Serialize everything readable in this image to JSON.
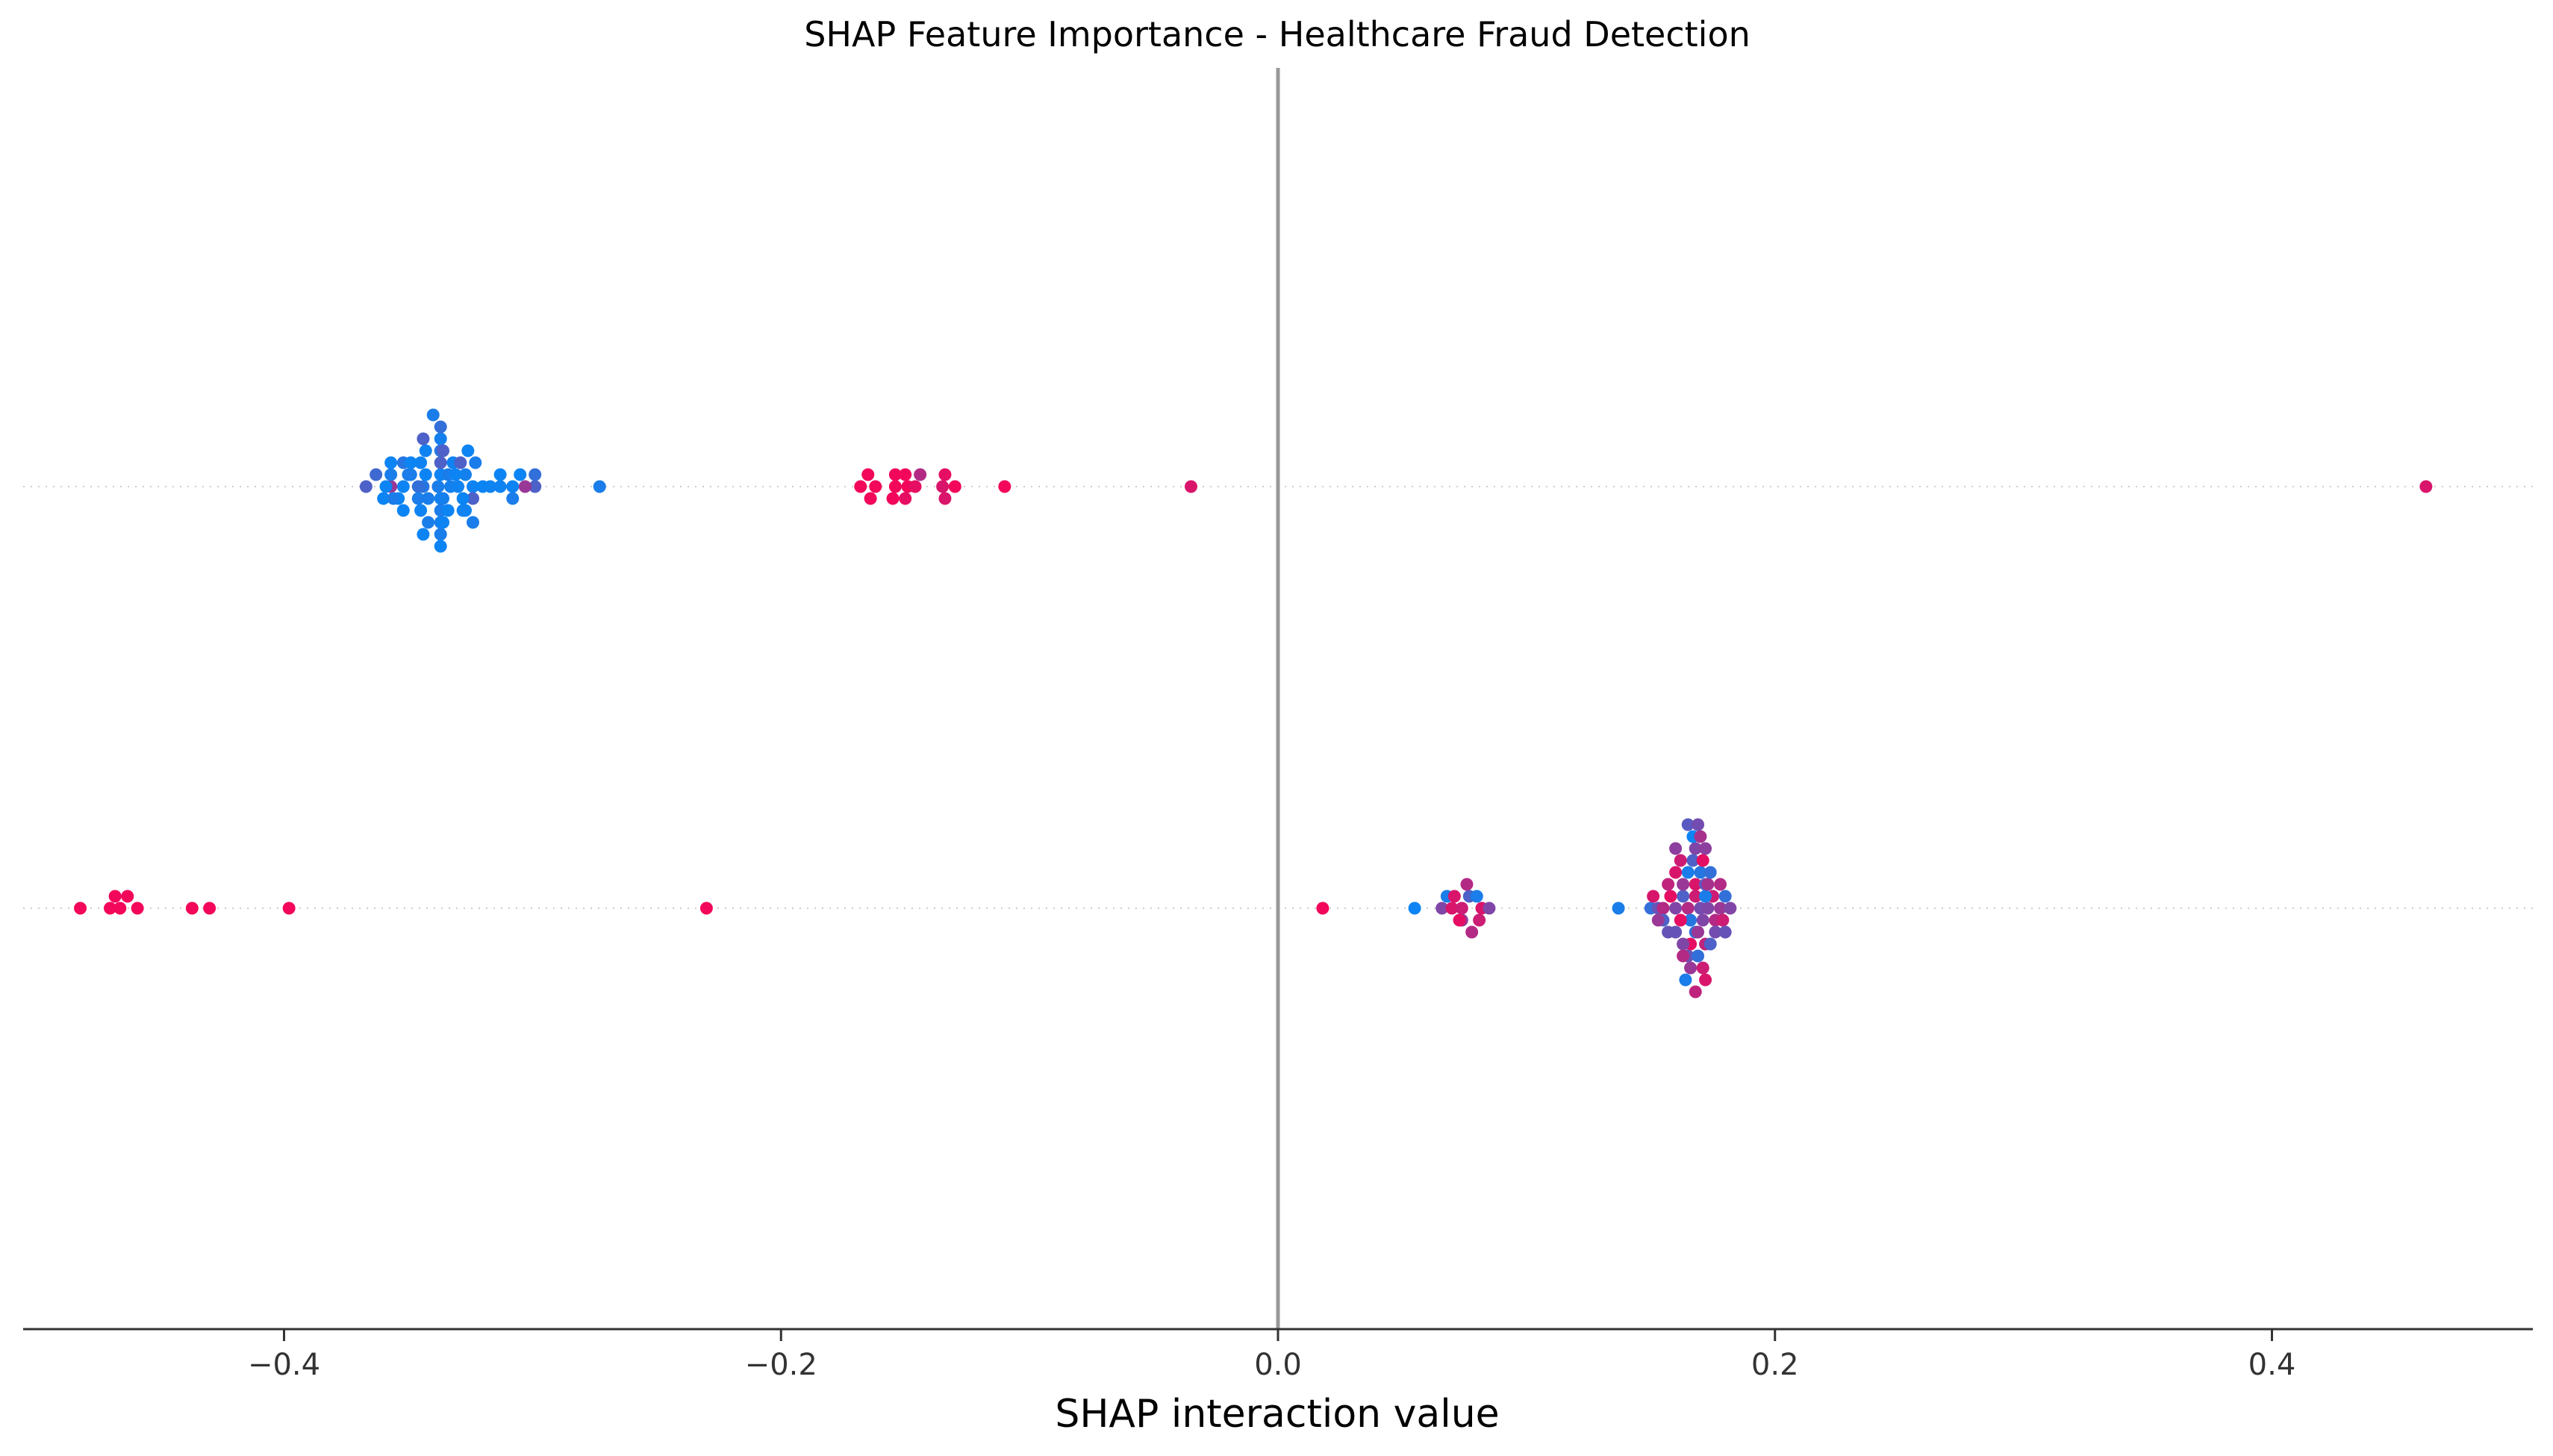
{
  "chart_data": {
    "type": "scatter",
    "title": "SHAP Feature Importance - Healthcare Fraud Detection",
    "xlabel": "SHAP interaction value",
    "ylabel": "",
    "xlim": [
      -0.505,
      0.505
    ],
    "xticks": [
      -0.4,
      -0.2,
      0.0,
      0.2,
      0.4
    ],
    "xtick_labels": [
      "−0.4",
      "−0.2",
      "0.0",
      "0.2",
      "0.4"
    ],
    "zero_line": 0.0,
    "grid": false,
    "rows": [
      {
        "row_index": 0,
        "feature_label": "",
        "points": [
          {
            "x": -0.344,
            "v": 0.15
          },
          {
            "x": -0.338,
            "v": 0.1
          },
          {
            "x": -0.343,
            "v": 0.05
          },
          {
            "x": -0.333,
            "v": 0.08
          },
          {
            "x": -0.337,
            "v": 0.05
          },
          {
            "x": -0.324,
            "v": 0.06
          },
          {
            "x": -0.342,
            "v": 0.1
          },
          {
            "x": -0.334,
            "v": 0.1
          },
          {
            "x": -0.336,
            "v": 0.1
          },
          {
            "x": -0.327,
            "v": 0.08
          },
          {
            "x": -0.352,
            "v": 0.05
          },
          {
            "x": -0.337,
            "v": 0.08
          },
          {
            "x": -0.324,
            "v": 0.3
          },
          {
            "x": -0.35,
            "v": 0.1
          },
          {
            "x": -0.337,
            "v": 0.3
          },
          {
            "x": -0.345,
            "v": 0.06
          },
          {
            "x": -0.354,
            "v": 0.05
          },
          {
            "x": -0.337,
            "v": 0.1
          },
          {
            "x": -0.357,
            "v": 0.6
          },
          {
            "x": -0.346,
            "v": 0.2
          },
          {
            "x": -0.33,
            "v": 0.06
          },
          {
            "x": -0.352,
            "v": 0.15
          },
          {
            "x": -0.337,
            "v": 0.15
          },
          {
            "x": -0.323,
            "v": 0.1
          },
          {
            "x": -0.359,
            "v": 0.05
          },
          {
            "x": -0.331,
            "v": 0.05
          },
          {
            "x": -0.308,
            "v": 0.05
          },
          {
            "x": -0.337,
            "v": 0.1
          },
          {
            "x": -0.328,
            "v": 0.05
          },
          {
            "x": -0.313,
            "v": 0.06
          },
          {
            "x": -0.305,
            "v": 0.05
          },
          {
            "x": -0.349,
            "v": 0.1
          },
          {
            "x": -0.337,
            "v": 0.08
          },
          {
            "x": -0.332,
            "v": 0.06
          },
          {
            "x": -0.363,
            "v": 0.25
          },
          {
            "x": -0.36,
            "v": 0.05
          },
          {
            "x": -0.346,
            "v": 0.1
          },
          {
            "x": -0.334,
            "v": 0.05
          },
          {
            "x": -0.317,
            "v": 0.06
          },
          {
            "x": -0.308,
            "v": 0.1
          },
          {
            "x": -0.367,
            "v": 0.3
          },
          {
            "x": -0.357,
            "v": 0.1
          },
          {
            "x": -0.345,
            "v": 0.06
          },
          {
            "x": -0.327,
            "v": 0.05
          },
          {
            "x": -0.299,
            "v": 0.3
          },
          {
            "x": -0.303,
            "v": 0.6
          },
          {
            "x": -0.352,
            "v": 0.05
          },
          {
            "x": -0.337,
            "v": 0.1
          },
          {
            "x": -0.32,
            "v": 0.05
          },
          {
            "x": -0.299,
            "v": 0.2
          },
          {
            "x": -0.356,
            "v": 0.1
          },
          {
            "x": -0.343,
            "v": 0.06
          },
          {
            "x": -0.326,
            "v": 0.05
          },
          {
            "x": -0.337,
            "v": 0.2
          },
          {
            "x": -0.349,
            "v": 0.05
          },
          {
            "x": -0.329,
            "v": 0.3
          },
          {
            "x": -0.357,
            "v": 0.05
          },
          {
            "x": -0.342,
            "v": 0.1
          },
          {
            "x": -0.313,
            "v": 0.05
          },
          {
            "x": -0.336,
            "v": 0.3
          },
          {
            "x": -0.328,
            "v": 0.06
          },
          {
            "x": -0.344,
            "v": 0.3
          },
          {
            "x": -0.337,
            "v": 0.05
          },
          {
            "x": -0.324,
            "v": 0.1
          },
          {
            "x": -0.344,
            "v": 0.05
          },
          {
            "x": -0.34,
            "v": 0.1
          },
          {
            "x": -0.336,
            "v": 0.05
          },
          {
            "x": -0.162,
            "v": 0.95
          },
          {
            "x": -0.149,
            "v": 0.95
          },
          {
            "x": -0.15,
            "v": 0.95
          },
          {
            "x": -0.165,
            "v": 0.95
          },
          {
            "x": -0.146,
            "v": 0.9
          },
          {
            "x": -0.154,
            "v": 0.95
          },
          {
            "x": -0.144,
            "v": 0.7
          },
          {
            "x": -0.135,
            "v": 0.85
          },
          {
            "x": -0.13,
            "v": 0.95
          },
          {
            "x": -0.164,
            "v": 0.95
          },
          {
            "x": -0.15,
            "v": 0.9
          },
          {
            "x": -0.134,
            "v": 0.9
          },
          {
            "x": -0.168,
            "v": 0.95
          },
          {
            "x": -0.154,
            "v": 0.95
          },
          {
            "x": -0.134,
            "v": 0.85
          },
          {
            "x": -0.155,
            "v": 0.95
          },
          {
            "x": -0.11,
            "v": 0.95
          },
          {
            "x": -0.035,
            "v": 0.85
          },
          {
            "x": -0.273,
            "v": 0.1
          },
          {
            "x": 0.462,
            "v": 0.85
          }
        ]
      },
      {
        "row_index": 1,
        "feature_label": "",
        "points": [
          {
            "x": -0.482,
            "v": 0.95
          },
          {
            "x": -0.47,
            "v": 0.95
          },
          {
            "x": -0.466,
            "v": 0.95
          },
          {
            "x": -0.463,
            "v": 0.95
          },
          {
            "x": -0.468,
            "v": 0.95
          },
          {
            "x": -0.459,
            "v": 0.95
          },
          {
            "x": -0.437,
            "v": 0.95
          },
          {
            "x": -0.43,
            "v": 0.95
          },
          {
            "x": -0.398,
            "v": 0.95
          },
          {
            "x": -0.23,
            "v": 0.95
          },
          {
            "x": 0.018,
            "v": 0.95
          },
          {
            "x": 0.055,
            "v": 0.05
          },
          {
            "x": 0.066,
            "v": 0.5
          },
          {
            "x": 0.07,
            "v": 0.85
          },
          {
            "x": 0.068,
            "v": 0.1
          },
          {
            "x": 0.074,
            "v": 0.8
          },
          {
            "x": 0.071,
            "v": 0.85
          },
          {
            "x": 0.077,
            "v": 0.3
          },
          {
            "x": 0.074,
            "v": 0.6
          },
          {
            "x": 0.082,
            "v": 0.85
          },
          {
            "x": 0.08,
            "v": 0.1
          },
          {
            "x": 0.085,
            "v": 0.5
          },
          {
            "x": 0.076,
            "v": 0.7
          },
          {
            "x": 0.073,
            "v": 0.9
          },
          {
            "x": 0.078,
            "v": 0.7
          },
          {
            "x": 0.081,
            "v": 0.8
          },
          {
            "x": 0.137,
            "v": 0.1
          },
          {
            "x": 0.15,
            "v": 0.2
          },
          {
            "x": 0.153,
            "v": 0.4
          },
          {
            "x": 0.155,
            "v": 0.7
          },
          {
            "x": 0.16,
            "v": 0.5
          },
          {
            "x": 0.163,
            "v": 0.3
          },
          {
            "x": 0.158,
            "v": 0.9
          },
          {
            "x": 0.165,
            "v": 0.7
          },
          {
            "x": 0.17,
            "v": 0.45
          },
          {
            "x": 0.168,
            "v": 0.8
          },
          {
            "x": 0.173,
            "v": 0.5
          },
          {
            "x": 0.175,
            "v": 0.8
          },
          {
            "x": 0.178,
            "v": 0.6
          },
          {
            "x": 0.18,
            "v": 0.2
          },
          {
            "x": 0.172,
            "v": 0.1
          },
          {
            "x": 0.166,
            "v": 0.15
          },
          {
            "x": 0.162,
            "v": 0.9
          },
          {
            "x": 0.168,
            "v": 0.85
          },
          {
            "x": 0.171,
            "v": 0.5
          },
          {
            "x": 0.176,
            "v": 0.7
          },
          {
            "x": 0.163,
            "v": 0.6
          },
          {
            "x": 0.16,
            "v": 0.4
          },
          {
            "x": 0.155,
            "v": 0.3
          },
          {
            "x": 0.168,
            "v": 0.2
          },
          {
            "x": 0.172,
            "v": 0.35
          },
          {
            "x": 0.179,
            "v": 0.8
          },
          {
            "x": 0.182,
            "v": 0.5
          },
          {
            "x": 0.165,
            "v": 0.1
          },
          {
            "x": 0.16,
            "v": 0.85
          },
          {
            "x": 0.166,
            "v": 0.9
          },
          {
            "x": 0.169,
            "v": 0.6
          },
          {
            "x": 0.173,
            "v": 0.65
          },
          {
            "x": 0.176,
            "v": 0.45
          },
          {
            "x": 0.163,
            "v": 0.5
          },
          {
            "x": 0.157,
            "v": 0.75
          },
          {
            "x": 0.151,
            "v": 0.85
          },
          {
            "x": 0.167,
            "v": 0.3
          },
          {
            "x": 0.17,
            "v": 0.15
          },
          {
            "x": 0.174,
            "v": 0.2
          },
          {
            "x": 0.172,
            "v": 0.75
          },
          {
            "x": 0.165,
            "v": 0.4
          },
          {
            "x": 0.162,
            "v": 0.8
          },
          {
            "x": 0.168,
            "v": 0.5
          },
          {
            "x": 0.178,
            "v": 0.7
          },
          {
            "x": 0.18,
            "v": 0.4
          },
          {
            "x": 0.171,
            "v": 0.9
          },
          {
            "x": 0.169,
            "v": 0.2
          },
          {
            "x": 0.163,
            "v": 0.7
          },
          {
            "x": 0.166,
            "v": 0.6
          },
          {
            "x": 0.172,
            "v": 0.55
          },
          {
            "x": 0.157,
            "v": 0.4
          },
          {
            "x": 0.167,
            "v": 0.05
          },
          {
            "x": 0.171,
            "v": 0.8
          },
          {
            "x": 0.164,
            "v": 0.1
          },
          {
            "x": 0.165,
            "v": 0.35
          },
          {
            "x": 0.17,
            "v": 0.65
          },
          {
            "x": 0.172,
            "v": 0.85
          },
          {
            "x": 0.169,
            "v": 0.45
          },
          {
            "x": 0.174,
            "v": 0.3
          },
          {
            "x": 0.168,
            "v": 0.75
          },
          {
            "x": 0.16,
            "v": 0.55
          },
          {
            "x": 0.153,
            "v": 0.6
          }
        ]
      }
    ],
    "point_color_low": "#008bfb",
    "point_color_high": "#ff0052",
    "zero_line_color": "#999999",
    "row_line_color": "#cccccc",
    "axis_color": "#333333"
  }
}
